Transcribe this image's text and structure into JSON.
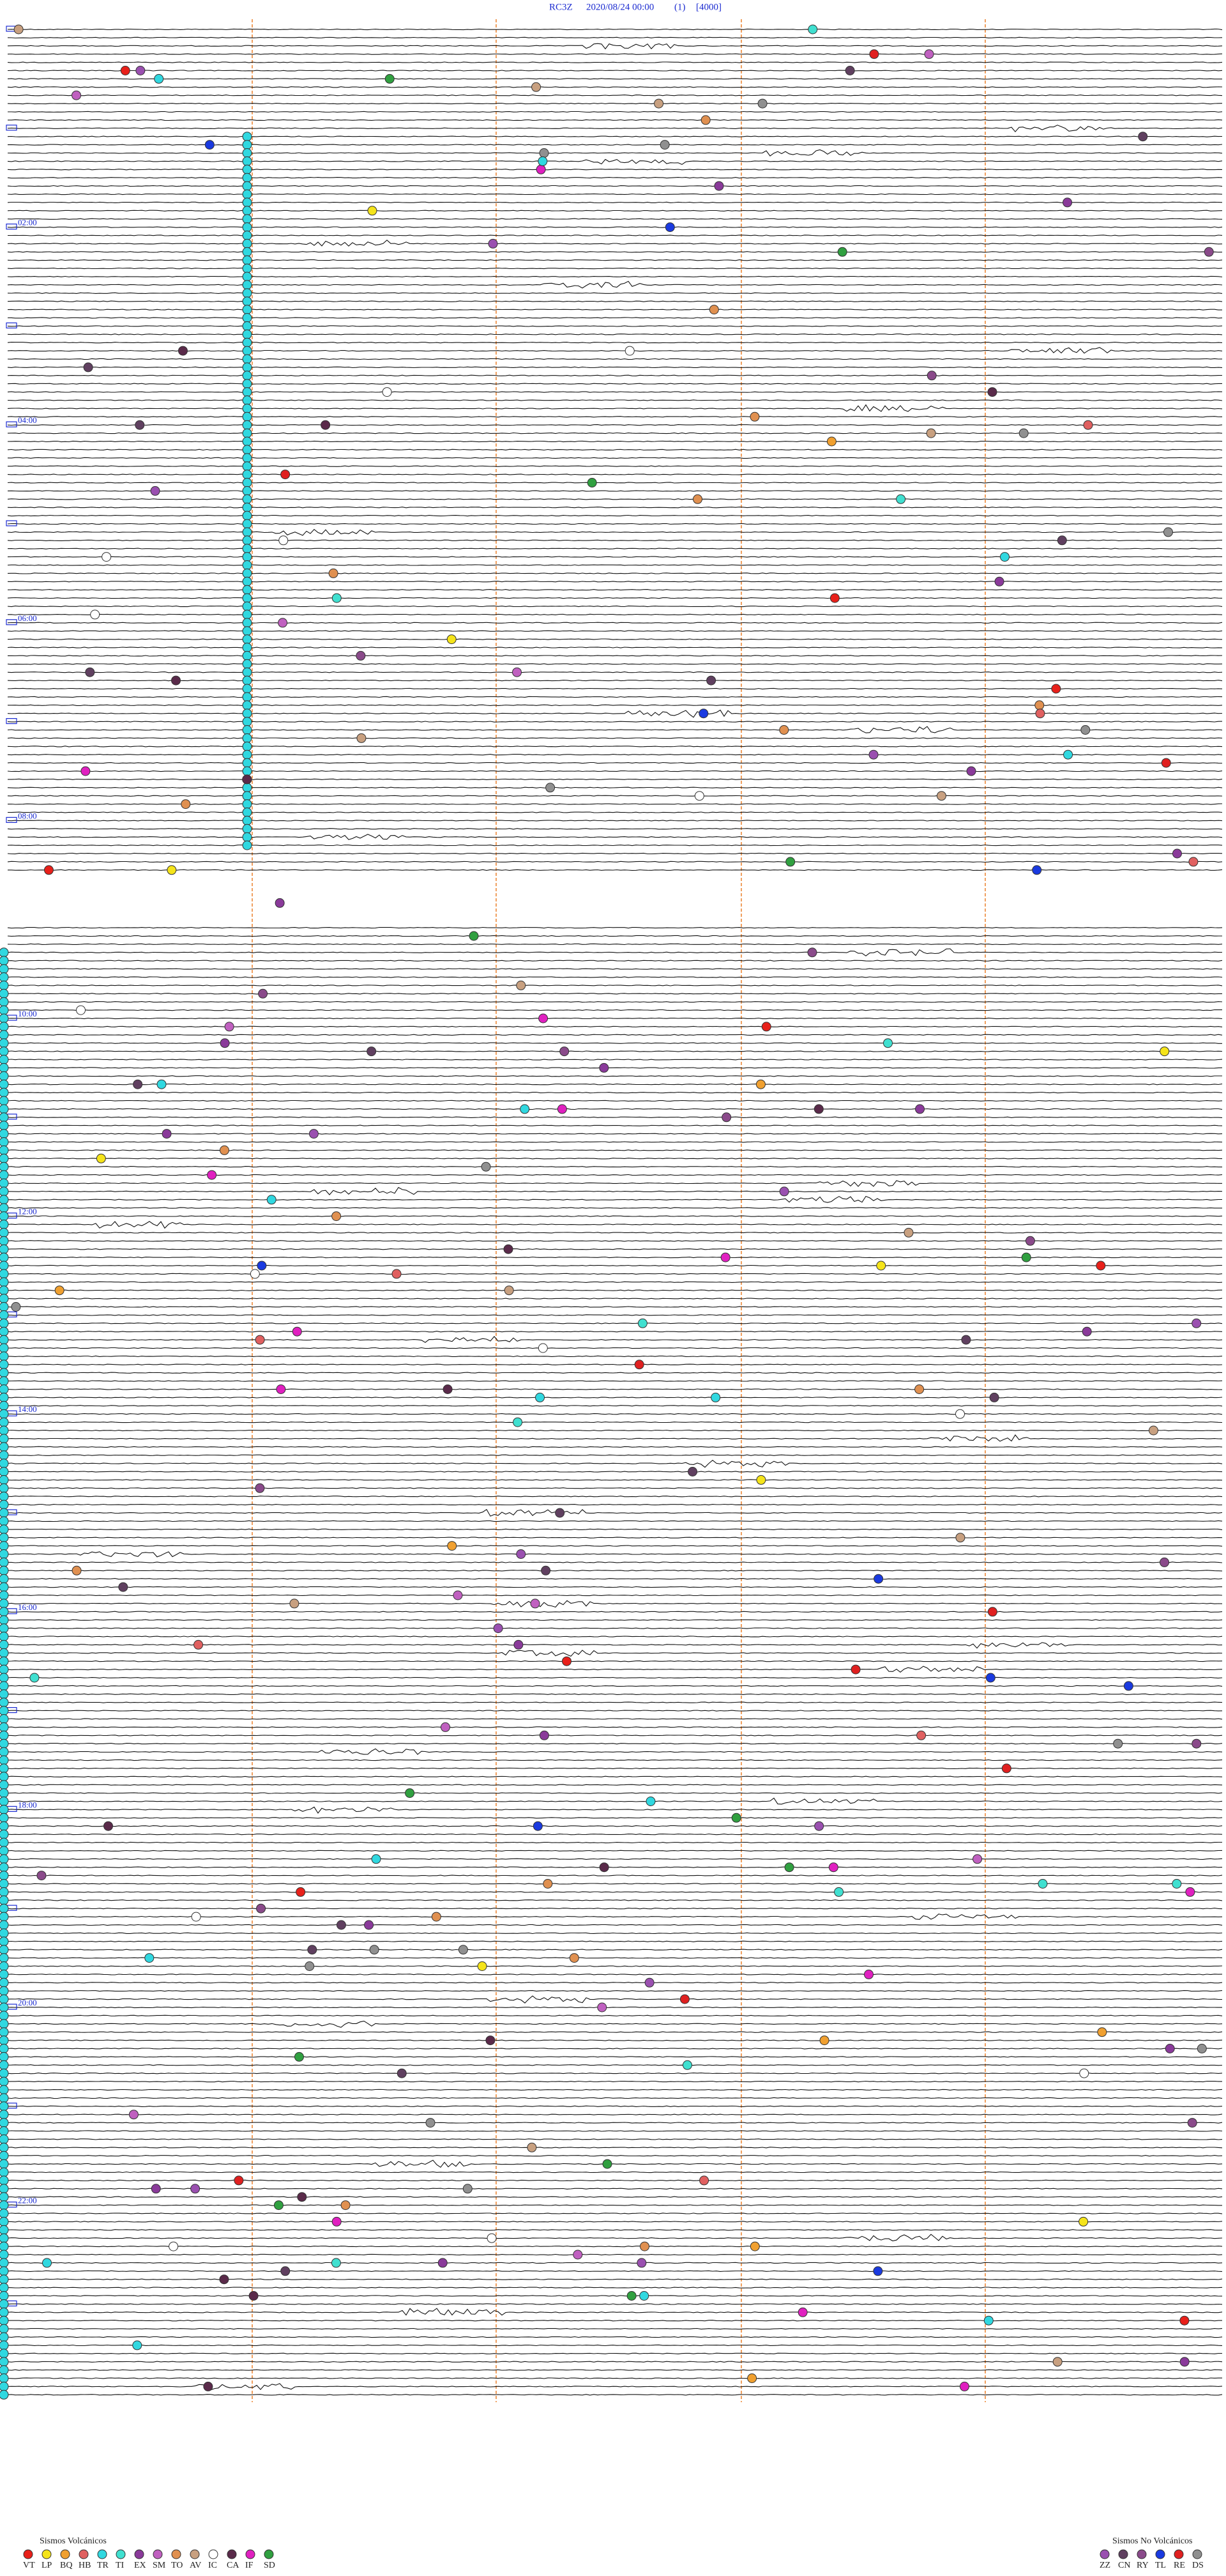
{
  "header": {
    "station": "RC3Z",
    "datetime": "2020/08/24 00:00",
    "channel": "(1)",
    "scale": "[4000]"
  },
  "hour_labels": [
    "02:00",
    "04:00",
    "06:00",
    "08:00",
    "10:00",
    "12:00",
    "14:00",
    "16:00",
    "18:00",
    "20:00",
    "22:00"
  ],
  "legend": {
    "volcanic": {
      "title": "Sismos Volcánicos",
      "items": [
        {
          "code": "VT",
          "color": "#e8201a"
        },
        {
          "code": "LP",
          "color": "#f5e41a"
        },
        {
          "code": "BQ",
          "color": "#f0a030"
        },
        {
          "code": "HB",
          "color": "#e06060"
        },
        {
          "code": "TR",
          "color": "#30d8e0"
        },
        {
          "code": "TI",
          "color": "#40e0d0"
        },
        {
          "code": "EX",
          "color": "#8a3a9a"
        },
        {
          "code": "SM",
          "color": "#c060c0"
        },
        {
          "code": "TO",
          "color": "#e09050"
        },
        {
          "code": "AV",
          "color": "#c8a080"
        },
        {
          "code": "IC",
          "color": "#ffffff"
        },
        {
          "code": "CA",
          "color": "#5a2a4a"
        },
        {
          "code": "IF",
          "color": "#e020c0"
        },
        {
          "code": "SD",
          "color": "#30a040"
        }
      ]
    },
    "non_volcanic": {
      "title": "Sismos No Volcánicos",
      "items": [
        {
          "code": "ZZ",
          "color": "#9a50b0"
        },
        {
          "code": "CN",
          "color": "#604060"
        },
        {
          "code": "RY",
          "color": "#8a4a8a"
        },
        {
          "code": "TL",
          "color": "#1a3ae0"
        },
        {
          "code": "RE",
          "color": "#e02020"
        },
        {
          "code": "DS",
          "color": "#909090"
        }
      ]
    }
  }
}
